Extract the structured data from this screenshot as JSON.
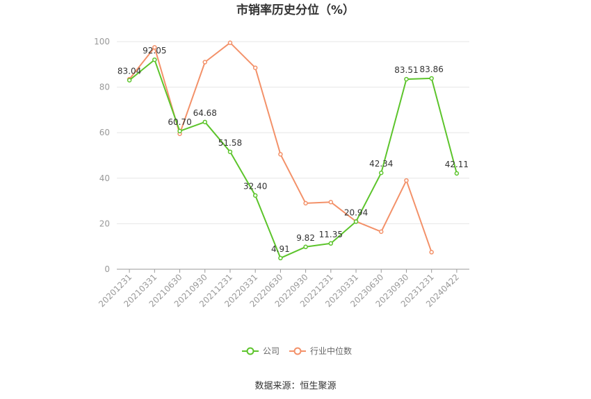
{
  "chart_data": {
    "type": "line",
    "title": "市销率历史分位（%）",
    "categories": [
      "20201231",
      "20210331",
      "20210630",
      "20210930",
      "20211231",
      "20220331",
      "20220630",
      "20220930",
      "20221231",
      "20230331",
      "20230630",
      "20230930",
      "20231231",
      "20240422"
    ],
    "series": [
      {
        "name": "公司",
        "color": "#5cc42b",
        "values": [
          83.04,
          92.05,
          60.7,
          64.68,
          51.58,
          32.4,
          4.91,
          9.82,
          11.35,
          20.94,
          42.34,
          83.51,
          83.86,
          42.11
        ],
        "labels": [
          "83.04",
          "92.05",
          "60.70",
          "64.68",
          "51.58",
          "32.40",
          "4.91",
          "9.82",
          "11.35",
          "20.94",
          "42.34",
          "83.51",
          "83.86",
          "42.11"
        ]
      },
      {
        "name": "行业中位数",
        "color": "#f39169",
        "values": [
          83.5,
          97.5,
          59.5,
          91.0,
          99.5,
          88.5,
          50.5,
          29.0,
          29.5,
          21.0,
          16.5,
          39.0,
          7.5,
          null
        ]
      }
    ],
    "ylim": [
      0,
      100
    ],
    "yticks": [
      "0",
      "20",
      "40",
      "60",
      "80",
      "100"
    ],
    "grid": true,
    "legend_position": "bottom"
  },
  "source": "数据来源：恒生聚源"
}
